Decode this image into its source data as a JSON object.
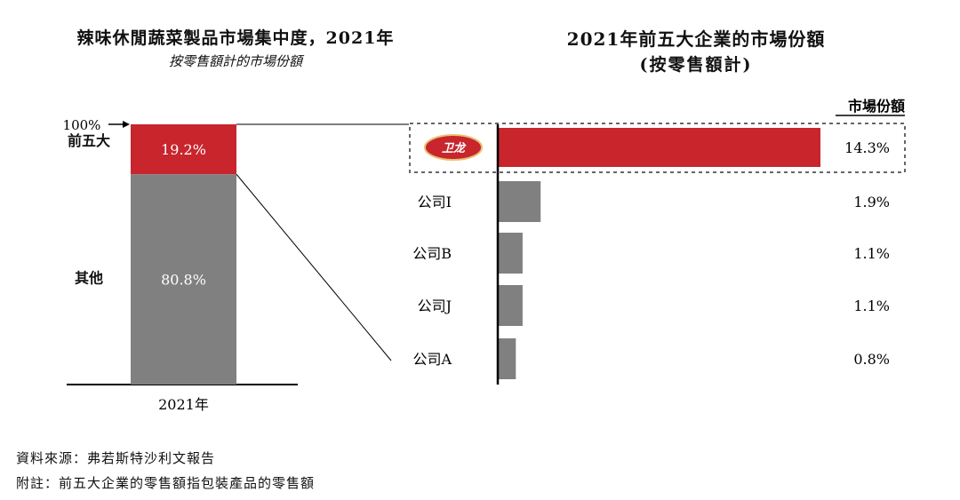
{
  "left_title": "辣味休閒蔬菜製品市場集中度，2021年",
  "left_subtitle": "按零售額計的市場份額",
  "right_title": "2021年前五大企業的市場份額",
  "right_subtitle": "(按零售額計)",
  "source_note": "資料來源：弗若斯特沙利文報告",
  "footnote": "附註：前五大企業的零售額指包裝產品的零售額",
  "logo_text": "卫龙",
  "colors": {
    "red": "#c8252c",
    "gray": "#808080",
    "axis": "#000000"
  },
  "chart_data": [
    {
      "type": "bar",
      "stacked": true,
      "categories": [
        "2021年"
      ],
      "series": [
        {
          "name": "前五大",
          "values": [
            19.2
          ],
          "label": "19.2%",
          "color": "#c8252c"
        },
        {
          "name": "其他",
          "values": [
            80.8
          ],
          "label": "80.8%",
          "color": "#808080"
        }
      ],
      "top_marker": "100%",
      "ylim": [
        0,
        100
      ]
    },
    {
      "type": "bar",
      "orientation": "horizontal",
      "value_header": "市場份額",
      "categories": [
        "卫龙",
        "公司I",
        "公司B",
        "公司J",
        "公司A"
      ],
      "values": [
        14.3,
        1.9,
        1.1,
        1.1,
        0.8
      ],
      "value_labels": [
        "14.3%",
        "1.9%",
        "1.1%",
        "1.1%",
        "0.8%"
      ],
      "highlight": "卫龙",
      "colors": [
        "#c8252c",
        "#808080",
        "#808080",
        "#808080",
        "#808080"
      ],
      "xlim": [
        0,
        14.3
      ]
    }
  ]
}
